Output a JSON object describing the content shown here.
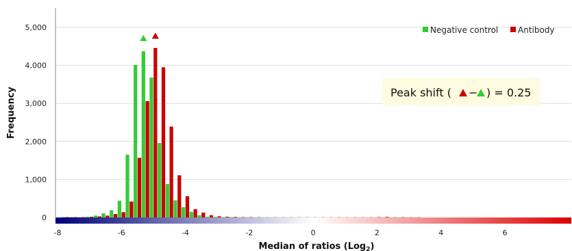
{
  "chart_data": {
    "type": "bar",
    "xlabel": "Median of ratios (Log",
    "xlabel_sub": "2",
    "xlabel_tail": ")",
    "ylabel": "Frequency",
    "xlim": [
      -8,
      8
    ],
    "ylim": [
      0,
      5000
    ],
    "xticks": [
      "-8",
      "-6",
      "-4",
      "-2",
      "0",
      "2",
      "4",
      "6"
    ],
    "yticks": [
      "0",
      "1,000",
      "2,000",
      "3,000",
      "4,000",
      "5,000"
    ],
    "grid": "horizontal",
    "legend_position": "top-right",
    "bin_width": 0.25,
    "bin_centers": [
      -7.75,
      -7.5,
      -7.25,
      -7.0,
      -6.75,
      -6.5,
      -6.25,
      -6.0,
      -5.75,
      -5.5,
      -5.25,
      -5.0,
      -4.75,
      -4.5,
      -4.25,
      -4.0,
      -3.75,
      -3.5,
      -3.25,
      -3.0,
      -2.75,
      -2.5,
      -2.25,
      -2.0,
      -1.75,
      -1.5,
      -1.25,
      -1.0,
      -0.75,
      -0.5,
      -0.25,
      0.0,
      0.25,
      0.5,
      0.75,
      1.0,
      1.25,
      1.5,
      1.75,
      2.0,
      2.25,
      2.5,
      2.75,
      3.0,
      3.25
    ],
    "series": [
      {
        "name": "Negative control",
        "color": "#33cc33",
        "values": [
          10,
          10,
          10,
          20,
          50,
          110,
          190,
          440,
          1650,
          4010,
          4370,
          3680,
          1960,
          880,
          450,
          270,
          150,
          60,
          20,
          15,
          10,
          10,
          8,
          8,
          5,
          5,
          5,
          5,
          5,
          5,
          5,
          5,
          5,
          5,
          5,
          5,
          5,
          5,
          5,
          5,
          5,
          5,
          5,
          5,
          5
        ]
      },
      {
        "name": "Antibody",
        "color": "#cc0000",
        "values": [
          10,
          10,
          10,
          20,
          30,
          50,
          90,
          140,
          420,
          1570,
          3060,
          4460,
          3950,
          2390,
          1110,
          560,
          220,
          130,
          60,
          30,
          20,
          15,
          10,
          10,
          8,
          5,
          5,
          5,
          5,
          5,
          5,
          5,
          5,
          5,
          5,
          5,
          5,
          5,
          5,
          10,
          15,
          5,
          8,
          5,
          5
        ]
      }
    ],
    "peak_markers": [
      {
        "series": "Negative control",
        "x": -5.25,
        "y": 4640,
        "color": "#33cc33"
      },
      {
        "series": "Antibody",
        "x": -5.0,
        "y": 4700,
        "color": "#cc0000"
      }
    ],
    "annotation": {
      "prefix": "Peak shift (",
      "dash": "−",
      "suffix": ") = 0.25",
      "red_marker_color": "#cc0000",
      "green_marker_color": "#33cc33",
      "background": "#fffbe0"
    },
    "colorbar": {
      "from": "#00007a",
      "mid": "#ffffff",
      "to": "#dd0000"
    }
  }
}
